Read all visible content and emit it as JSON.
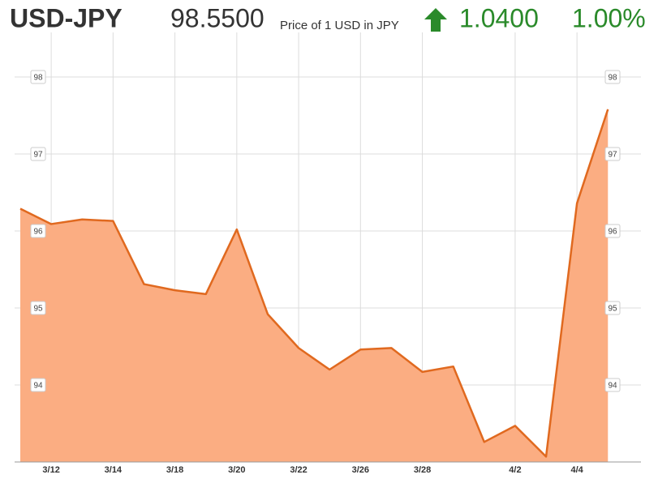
{
  "header": {
    "symbol": "USD-JPY",
    "price": "98.5500",
    "price_label": "Price of 1 USD in JPY",
    "change": "1.0400",
    "change_pct": "1.00%"
  },
  "chart_data": {
    "type": "area",
    "categories": [
      null,
      "3/12",
      null,
      "3/14",
      null,
      "3/18",
      null,
      "3/20",
      null,
      "3/22",
      null,
      "3/26",
      null,
      "3/28",
      null,
      null,
      "4/2",
      null,
      "4/4",
      null
    ],
    "values": [
      96.29,
      96.09,
      96.15,
      96.13,
      95.31,
      95.23,
      95.18,
      96.02,
      94.92,
      94.48,
      94.2,
      94.46,
      94.48,
      94.17,
      94.24,
      93.26,
      93.47,
      93.07,
      96.36,
      97.58
    ],
    "color": "#e0691f",
    "fill": "#fbad82",
    "ylim": [
      93,
      98.5
    ],
    "yticks": [
      94,
      95,
      96,
      97,
      98
    ],
    "grid": true,
    "right_axis": true
  }
}
